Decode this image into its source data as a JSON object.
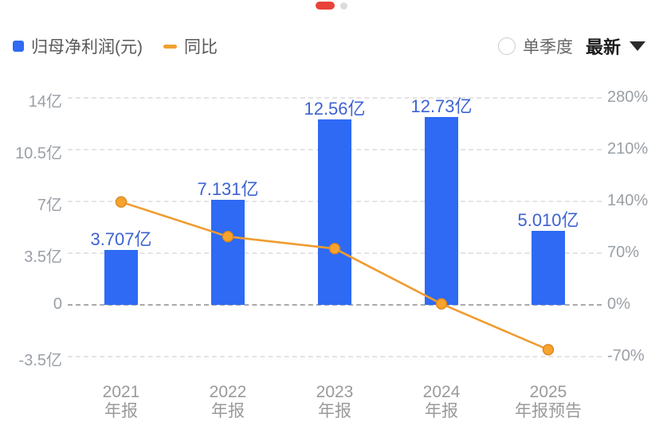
{
  "pagination": {
    "dots": [
      {
        "name": "active",
        "color": "#e8433a"
      },
      {
        "name": "inactive",
        "color": "#dcdcdc"
      }
    ]
  },
  "legend": {
    "items": [
      {
        "label": "归母净利润(元)",
        "type": "bar",
        "color": "#2e6af3"
      },
      {
        "label": "同比",
        "type": "line",
        "color": "#f0a030"
      }
    ]
  },
  "controls": {
    "radio_label": "单季度",
    "radio_checked": false,
    "dropdown_value": "最新"
  },
  "chart_data": {
    "type": "combo-bar-line",
    "categories": [
      "2021 年报",
      "2022 年报",
      "2023 年报",
      "2024 年报",
      "2025 年报预告"
    ],
    "category_lines": [
      [
        "2021",
        "年报"
      ],
      [
        "2022",
        "年报"
      ],
      [
        "2023",
        "年报"
      ],
      [
        "2024",
        "年报"
      ],
      [
        "2025",
        "年报预告"
      ]
    ],
    "series": [
      {
        "name": "归母净利润(元)",
        "type": "bar",
        "axis": "left",
        "unit": "亿",
        "values": [
          3.707,
          7.131,
          12.56,
          12.73,
          5.01
        ],
        "labels": [
          "3.707亿",
          "7.131亿",
          "12.56亿",
          "12.73亿",
          "5.010亿"
        ],
        "color": "#2e6af3",
        "label_color": "#3d63d2"
      },
      {
        "name": "同比",
        "type": "line",
        "axis": "right",
        "unit": "%",
        "values": [
          139.2,
          92.4,
          76.1,
          1.4,
          -60.6
        ],
        "color": "#ef9c30",
        "marker_fill": "#f6a42e",
        "marker_stroke": "#dd861c"
      }
    ],
    "left_axis": {
      "ticks": [
        "14亿",
        "10.5亿",
        "7亿",
        "3.5亿",
        "0",
        "-3.5亿"
      ],
      "tick_values": [
        14,
        10.5,
        7,
        3.5,
        0,
        -3.5
      ],
      "range": [
        -3.5,
        14
      ]
    },
    "right_axis": {
      "ticks": [
        "280%",
        "210%",
        "140%",
        "70%",
        "0%",
        "-70%"
      ],
      "tick_values": [
        280,
        210,
        140,
        70,
        0,
        -70
      ],
      "range": [
        -70,
        280
      ]
    },
    "grid": "horizontal-dashed",
    "legend_position": "top-left"
  }
}
